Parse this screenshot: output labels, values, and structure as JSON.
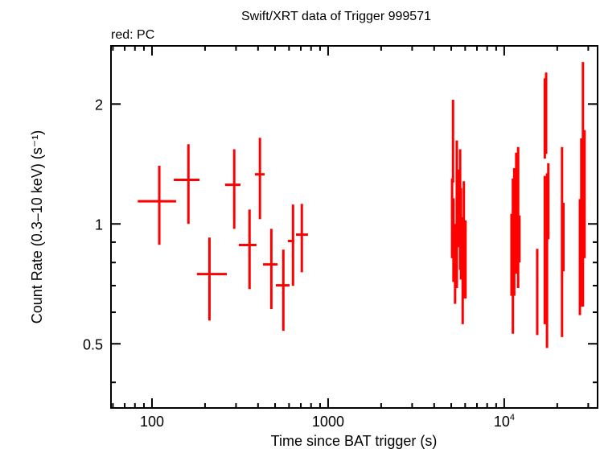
{
  "chart_data": {
    "type": "scatter",
    "title": "Swift/XRT data of Trigger 999571",
    "subtitle": "red: PC",
    "xlabel": "Time since BAT trigger (s)",
    "ylabel": "Count Rate (0.3–10 keV) (s⁻¹)",
    "x_scale": "log",
    "y_scale": "log",
    "xlim": [
      58.5,
      33900
    ],
    "ylim": [
      0.345,
      2.8
    ],
    "x_ticks": [
      {
        "value": 100,
        "label": "100"
      },
      {
        "value": 1000,
        "label": "1000"
      },
      {
        "value": 10000,
        "label": "10",
        "sup": "4"
      }
    ],
    "y_ticks": [
      {
        "value": 0.5,
        "label": "0.5"
      },
      {
        "value": 1,
        "label": "1"
      },
      {
        "value": 2,
        "label": "2"
      }
    ],
    "grid": false,
    "legend": "none",
    "series": [
      {
        "name": "PC",
        "color": "#ff0000",
        "columns": [
          "time",
          "time_lo",
          "time_hi",
          "rate",
          "rate_lo",
          "rate_hi"
        ],
        "points": [
          [
            110,
            83,
            137,
            1.14,
            0.886,
            1.4
          ],
          [
            161,
            133,
            186,
            1.29,
            1.0,
            1.585
          ],
          [
            212,
            180,
            266,
            0.748,
            0.572,
            0.924
          ],
          [
            293,
            260,
            318,
            1.254,
            0.972,
            1.54
          ],
          [
            358,
            311,
            392,
            0.885,
            0.686,
            1.087
          ],
          [
            410,
            384,
            436,
            1.332,
            1.028,
            1.645
          ],
          [
            476,
            427,
            516,
            0.791,
            0.611,
            0.972
          ],
          [
            557,
            505,
            604,
            0.701,
            0.539,
            0.862
          ],
          [
            632,
            591,
            643,
            0.906,
            0.699,
            1.118
          ],
          [
            709,
            657,
            769,
            0.94,
            0.756,
            1.123
          ],
          [
            5060,
            5000,
            5110,
            1.06,
            0.82,
            1.3
          ],
          [
            5120,
            5090,
            5150,
            1.66,
            1.27,
            2.05
          ],
          [
            5150,
            5120,
            5180,
            1.0,
            0.715,
            1.16
          ],
          [
            5260,
            5220,
            5300,
            0.862,
            0.63,
            1.0
          ],
          [
            5380,
            5340,
            5420,
            1.32,
            0.69,
            1.62
          ],
          [
            5490,
            5450,
            5530,
            1.1,
            0.874,
            1.37
          ],
          [
            5620,
            5580,
            5660,
            1.23,
            0.767,
            1.54
          ],
          [
            5680,
            5650,
            5720,
            1.04,
            0.725,
            1.23
          ],
          [
            5810,
            5770,
            5850,
            0.725,
            0.56,
            1.04
          ],
          [
            5900,
            5860,
            5940,
            1.04,
            0.65,
            1.28
          ],
          [
            6030,
            5990,
            6080,
            0.834,
            0.65,
            1.02
          ],
          [
            11000,
            10900,
            11100,
            0.862,
            0.66,
            1.06
          ],
          [
            11200,
            11100,
            11300,
            0.81,
            0.53,
            1.3
          ],
          [
            11400,
            11300,
            11500,
            0.915,
            0.66,
            1.38
          ],
          [
            11700,
            11600,
            11800,
            1.05,
            0.75,
            1.51
          ],
          [
            12000,
            11900,
            12100,
            0.87,
            0.69,
            1.56
          ],
          [
            12200,
            12100,
            12300,
            0.87,
            0.8,
            1.05
          ],
          [
            15400,
            15200,
            15600,
            0.719,
            0.526,
            0.866
          ],
          [
            17000,
            16900,
            17100,
            1.875,
            1.46,
            2.32
          ],
          [
            17300,
            17200,
            17400,
            2.02,
            1.5,
            2.4
          ],
          [
            17000,
            16900,
            17100,
            0.93,
            0.56,
            1.32
          ],
          [
            17500,
            17400,
            17600,
            0.796,
            0.488,
            1.34
          ],
          [
            17800,
            17700,
            17950,
            1.155,
            0.915,
            1.42
          ],
          [
            21300,
            21150,
            21450,
            0.946,
            0.52,
            1.56
          ],
          [
            21700,
            21550,
            21850,
            0.946,
            0.76,
            1.13
          ],
          [
            26900,
            26750,
            27050,
            0.82,
            0.59,
            1.155
          ],
          [
            27400,
            27250,
            27550,
            1.0,
            0.62,
            1.64
          ],
          [
            28000,
            27850,
            28150,
            1.73,
            0.62,
            2.55
          ],
          [
            28600,
            28450,
            28750,
            1.27,
            0.82,
            1.72
          ]
        ]
      }
    ]
  }
}
